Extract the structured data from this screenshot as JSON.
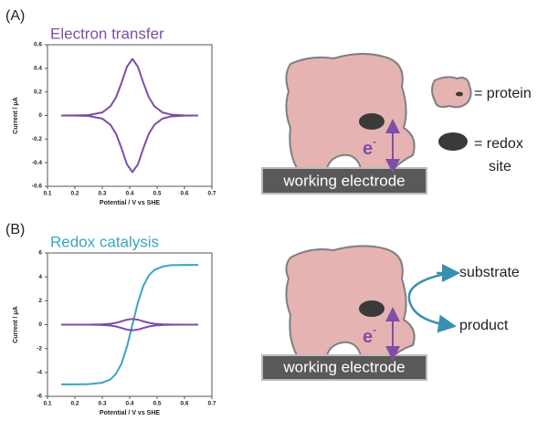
{
  "panel_labels": [
    "(A)",
    "(B)"
  ],
  "chart_data": [
    {
      "type": "line",
      "title": "Electron transfer",
      "title_color": "#7d4fa6",
      "x_label": "Potential / V vs SHE",
      "y_label": "Current / μA",
      "x": [
        0.15,
        0.2,
        0.25,
        0.3,
        0.33,
        0.35,
        0.37,
        0.39,
        0.41,
        0.43,
        0.45,
        0.47,
        0.49,
        0.52,
        0.55,
        0.6,
        0.65
      ],
      "series": [
        {
          "color": "#7d4fa6",
          "values": [
            0,
            0.001,
            0.004,
            0.026,
            0.079,
            0.154,
            0.276,
            0.414,
            0.48,
            0.414,
            0.276,
            0.154,
            0.079,
            0.026,
            0.008,
            0.001,
            0
          ]
        },
        {
          "color": "#7d4fa6",
          "values": [
            0,
            -0.001,
            -0.004,
            -0.026,
            -0.079,
            -0.154,
            -0.276,
            -0.414,
            -0.48,
            -0.414,
            -0.276,
            -0.154,
            -0.079,
            -0.026,
            -0.008,
            -0.001,
            0
          ]
        }
      ],
      "xlim": [
        0.1,
        0.7
      ],
      "xticks": [
        0.1,
        0.2,
        0.3,
        0.4,
        0.5,
        0.6,
        0.7
      ],
      "ylim": [
        -0.6,
        0.6
      ],
      "yticks": [
        -0.6,
        -0.4,
        -0.2,
        0,
        0.2,
        0.4,
        0.6
      ]
    },
    {
      "type": "line",
      "title": "Redox catalysis",
      "title_color": "#3aa5c0",
      "x_label": "Potential / V vs SHE",
      "y_label": "Current / μA",
      "x": [
        0.15,
        0.2,
        0.25,
        0.3,
        0.33,
        0.35,
        0.37,
        0.39,
        0.41,
        0.43,
        0.45,
        0.47,
        0.49,
        0.52,
        0.55,
        0.6,
        0.65
      ],
      "series": [
        {
          "color": "#3aa5c0",
          "values": [
            -5.0,
            -5.0,
            -4.98,
            -4.86,
            -4.58,
            -4.12,
            -3.26,
            -1.85,
            0,
            1.85,
            3.26,
            4.12,
            4.58,
            4.86,
            4.98,
            5.0,
            5.0
          ]
        },
        {
          "color": "#7d4fa6",
          "values": [
            0,
            0.001,
            0.004,
            0.026,
            0.079,
            0.154,
            0.276,
            0.414,
            0.48,
            0.414,
            0.276,
            0.154,
            0.079,
            0.026,
            0.008,
            0.001,
            0
          ]
        },
        {
          "color": "#7d4fa6",
          "values": [
            0,
            -0.001,
            -0.004,
            -0.026,
            -0.079,
            -0.154,
            -0.276,
            -0.414,
            -0.48,
            -0.414,
            -0.276,
            -0.154,
            -0.079,
            -0.026,
            -0.008,
            -0.001,
            0
          ]
        }
      ],
      "xlim": [
        0.1,
        0.7
      ],
      "xticks": [
        0.1,
        0.2,
        0.3,
        0.4,
        0.5,
        0.6,
        0.7
      ],
      "ylim": [
        -6,
        6
      ],
      "yticks": [
        -6,
        -4,
        -2,
        0,
        2,
        4,
        6
      ]
    }
  ],
  "diagrams": [
    {
      "electron": "e",
      "electron_charge": "-",
      "electrode": "working electrode",
      "legend": [
        "= protein",
        "= redox",
        "site"
      ]
    },
    {
      "electron": "e",
      "electron_charge": "-",
      "electrode": "working electrode",
      "substrate": "substrate",
      "product": "product"
    }
  ]
}
